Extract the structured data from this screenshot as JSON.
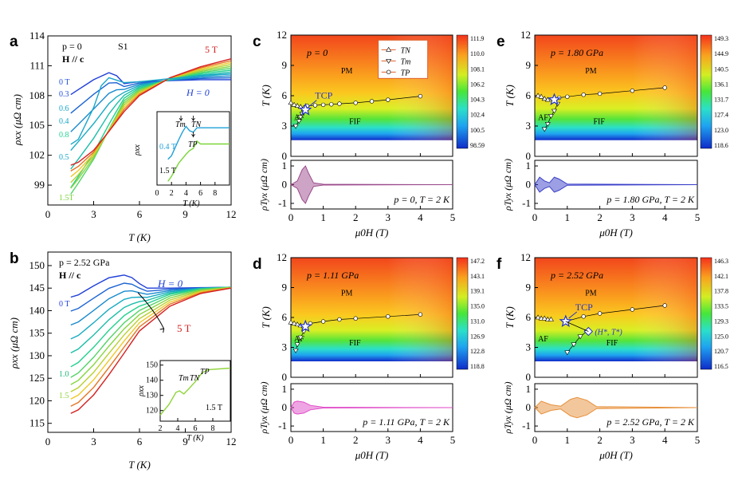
{
  "figure": {
    "a": {
      "label": "a",
      "title": "p = 0",
      "sample": "S1",
      "field_dir": "H // c",
      "xlabel": "T (K)",
      "ylabel": "ρxx (μΩ cm)",
      "xticks": [
        "0",
        "3",
        "6",
        "9",
        "12"
      ],
      "yticks": [
        "99",
        "102",
        "105",
        "108",
        "111",
        "114"
      ],
      "top_label": "5 T",
      "bottom_label": "H = 0",
      "field_labels": [
        {
          "text": "0 T",
          "color": "#1f4fd8"
        },
        {
          "text": "0.3",
          "color": "#1f4fd8"
        },
        {
          "text": "0.6",
          "color": "#17a6c9"
        },
        {
          "text": "0.4",
          "color": "#17a6c9"
        },
        {
          "text": "0.8",
          "color": "#1fd18f"
        },
        {
          "text": "0.5",
          "color": "#17a6c9"
        },
        {
          "text": "1.5T",
          "color": "#7ad63a"
        }
      ],
      "inset": {
        "xlabel": "T (K)",
        "ylabel": "ρxx",
        "xticks": [
          "0",
          "2",
          "4",
          "6",
          "8"
        ],
        "Tm": "Tm",
        "TN": "TN",
        "TP": "TP",
        "f1": "0.4 T",
        "f2": "1.5 T"
      }
    },
    "b": {
      "label": "b",
      "title": "p = 2.52 GPa",
      "field_dir": "H // c",
      "xlabel": "T (K)",
      "ylabel": "ρxx (μΩ cm)",
      "xticks": [
        "0",
        "3",
        "6",
        "9",
        "12"
      ],
      "yticks": [
        "115",
        "120",
        "125",
        "130",
        "135",
        "140",
        "145",
        "150"
      ],
      "h0": "H = 0",
      "t5": "5 T",
      "l0": "0 T",
      "l1": "1.0",
      "l15": "1.5",
      "inset": {
        "xlabel": "T (K)",
        "ylabel": "ρxx",
        "xticks": [
          "2",
          "4",
          "6",
          "8"
        ],
        "yticks": [
          "120",
          "130",
          "140",
          "150"
        ],
        "Tm": "Tm",
        "TN": "TN",
        "TP": "TP",
        "f": "1.5 T"
      }
    },
    "phase": {
      "xlabel": "μ0H (T)",
      "ylabel": "T (K)",
      "rlabel": "ρTyx (μΩ cm)",
      "xticks": [
        "0",
        "1",
        "2",
        "3",
        "4",
        "5"
      ],
      "yticks": [
        "0",
        "3",
        "6",
        "9",
        "12"
      ],
      "rticks": [
        "1",
        "0",
        "-1"
      ],
      "legend": [
        "TN",
        "Tm",
        "TP"
      ],
      "PM": "PM",
      "AF": "AF",
      "FIF": "FIF",
      "TCP": "TCP",
      "HT": "(H*, T*)",
      "c": {
        "label": "c",
        "title": "p = 0",
        "note": "p = 0, T = 2 K",
        "color": "#9b4a8c",
        "cbar": [
          "111.9",
          "110.0",
          "108.1",
          "106.2",
          "104.3",
          "102.4",
          "100.5",
          "98.59"
        ]
      },
      "d": {
        "label": "d",
        "title": "p = 1.11 GPa",
        "note": "p = 1.11 GPa, T = 2 K",
        "color": "#e04cc8",
        "cbar": [
          "147.2",
          "143.1",
          "139.1",
          "135.0",
          "131.0",
          "126.9",
          "122.8",
          "118.8"
        ]
      },
      "e": {
        "label": "e",
        "title": "p = 1.80 GPa",
        "note": "p = 1.80 GPa, T = 2 K",
        "color": "#3a3fc8",
        "cbar": [
          "149.3",
          "144.9",
          "140.5",
          "136.1",
          "131.7",
          "127.4",
          "123.0",
          "118.6"
        ]
      },
      "f": {
        "label": "f",
        "title": "p = 2.52 GPa",
        "note": "p = 2.52 GPa, T = 2 K",
        "color": "#e7903a",
        "cbar": [
          "146.3",
          "142.1",
          "137.8",
          "133.5",
          "129.3",
          "125.0",
          "120.7",
          "116.5"
        ]
      }
    }
  },
  "chart_data": [
    {
      "type": "line",
      "panel": "a",
      "title": "p = 0",
      "xlabel": "T (K)",
      "ylabel": "ρxx (μΩ cm)",
      "xlim": [
        0,
        12
      ],
      "ylim": [
        97,
        114
      ],
      "series": [
        {
          "name": "0 T",
          "x": [
            1.5,
            2,
            3,
            4,
            4.5,
            5,
            6,
            8,
            10,
            12
          ],
          "y": [
            108.1,
            108.6,
            109.6,
            110.3,
            110.0,
            109.2,
            109.4,
            109.5,
            109.6,
            109.6
          ]
        },
        {
          "name": "0.5 T",
          "x": [
            1.5,
            2,
            3,
            3.5,
            4,
            5,
            6,
            8,
            10,
            12
          ],
          "y": [
            103.1,
            103.6,
            106.8,
            109.0,
            109.8,
            109.3,
            109.4,
            109.7,
            110.0,
            110.2
          ]
        },
        {
          "name": "1.5 T",
          "x": [
            1.5,
            2,
            3,
            4,
            5,
            6,
            8,
            10,
            12
          ],
          "y": [
            97.8,
            99.0,
            101.5,
            104.6,
            107.6,
            108.7,
            109.6,
            110.3,
            110.8
          ]
        },
        {
          "name": "5 T",
          "x": [
            1.5,
            2,
            3,
            4,
            5,
            6,
            8,
            10,
            12
          ],
          "y": [
            101.0,
            101.3,
            102.5,
            104.4,
            106.4,
            108.0,
            109.8,
            110.9,
            111.7
          ]
        }
      ]
    },
    {
      "type": "line",
      "panel": "b",
      "title": "p = 2.52 GPa",
      "xlabel": "T (K)",
      "ylabel": "ρxx (μΩ cm)",
      "xlim": [
        0,
        12
      ],
      "ylim": [
        113,
        153
      ],
      "series": [
        {
          "name": "0 T",
          "x": [
            1.5,
            2,
            3,
            4,
            5,
            5.8,
            6.2,
            8,
            10,
            12
          ],
          "y": [
            143.0,
            143.5,
            145.5,
            147.3,
            147.9,
            147.0,
            145.0,
            145.0,
            145.1,
            145.2
          ]
        },
        {
          "name": "1.0 T",
          "x": [
            1.5,
            2,
            3,
            4,
            5,
            6,
            8,
            10,
            12
          ],
          "y": [
            126.0,
            127.0,
            130.5,
            134.5,
            138.0,
            140.5,
            143.5,
            144.8,
            145.2
          ]
        },
        {
          "name": "5 T",
          "x": [
            1.5,
            2,
            3,
            4,
            5,
            6,
            8,
            10,
            12
          ],
          "y": [
            117.2,
            118.0,
            121.3,
            125.8,
            130.6,
            135.5,
            141.0,
            143.8,
            145.0
          ]
        }
      ]
    },
    {
      "type": "scatter",
      "panel": "c",
      "title": "p = 0",
      "xlabel": "μ0H (T)",
      "ylabel": "T (K)",
      "xlim": [
        0,
        5
      ],
      "ylim": [
        0,
        12
      ],
      "TN": {
        "x": [
          0,
          0.1,
          0.2,
          0.3,
          0.4
        ],
        "y": [
          5.3,
          5.1,
          5.0,
          4.9,
          4.8
        ]
      },
      "Tm": {
        "x": [
          0.15,
          0.25,
          0.3,
          0.35,
          0.4
        ],
        "y": [
          3.0,
          3.5,
          3.9,
          4.2,
          4.4
        ]
      },
      "TP": {
        "x": [
          0.5,
          0.75,
          1.0,
          1.25,
          1.5,
          2.0,
          2.5,
          3.0,
          4.0
        ],
        "y": [
          5.0,
          5.05,
          5.1,
          5.15,
          5.2,
          5.3,
          5.45,
          5.6,
          5.95
        ]
      },
      "TCP": {
        "x": 0.45,
        "y": 4.6
      }
    },
    {
      "type": "area",
      "panel": "c-bottom",
      "xlabel": "μ0H (T)",
      "ylabel": "ρTyx (μΩ cm)",
      "xlim": [
        0,
        5
      ],
      "ylim": [
        -1.3,
        1.3
      ],
      "x": [
        0,
        0.2,
        0.35,
        0.45,
        0.55,
        0.7,
        1.0,
        5
      ],
      "y": [
        0,
        0.2,
        0.8,
        1.0,
        0.6,
        0.1,
        0.02,
        0
      ]
    },
    {
      "type": "area",
      "panel": "d-bottom",
      "xlabel": "μ0H (T)",
      "ylabel": "ρTyx (μΩ cm)",
      "xlim": [
        0,
        5
      ],
      "ylim": [
        -1.3,
        1.3
      ],
      "x": [
        0,
        0.1,
        0.2,
        0.4,
        0.6,
        1.0,
        5
      ],
      "y": [
        0,
        0.3,
        0.35,
        0.3,
        0.12,
        0.02,
        0
      ]
    },
    {
      "type": "area",
      "panel": "e-bottom",
      "xlabel": "μ0H (T)",
      "ylabel": "ρTyx (μΩ cm)",
      "xlim": [
        0,
        5
      ],
      "ylim": [
        -1.3,
        1.3
      ],
      "x": [
        0,
        0.15,
        0.3,
        0.45,
        0.6,
        0.75,
        1.0,
        5
      ],
      "y": [
        0,
        0.4,
        0.2,
        0.1,
        0.4,
        0.3,
        0.03,
        0
      ]
    },
    {
      "type": "area",
      "panel": "f-bottom",
      "xlabel": "μ0H (T)",
      "ylabel": "ρTyx (μΩ cm)",
      "xlim": [
        0,
        5
      ],
      "ylim": [
        -1.3,
        1.3
      ],
      "x": [
        0,
        0.2,
        0.5,
        0.8,
        1.1,
        1.3,
        1.6,
        1.9,
        5
      ],
      "y": [
        0,
        0.35,
        0.15,
        0.08,
        0.45,
        0.55,
        0.4,
        0.05,
        0
      ]
    }
  ]
}
